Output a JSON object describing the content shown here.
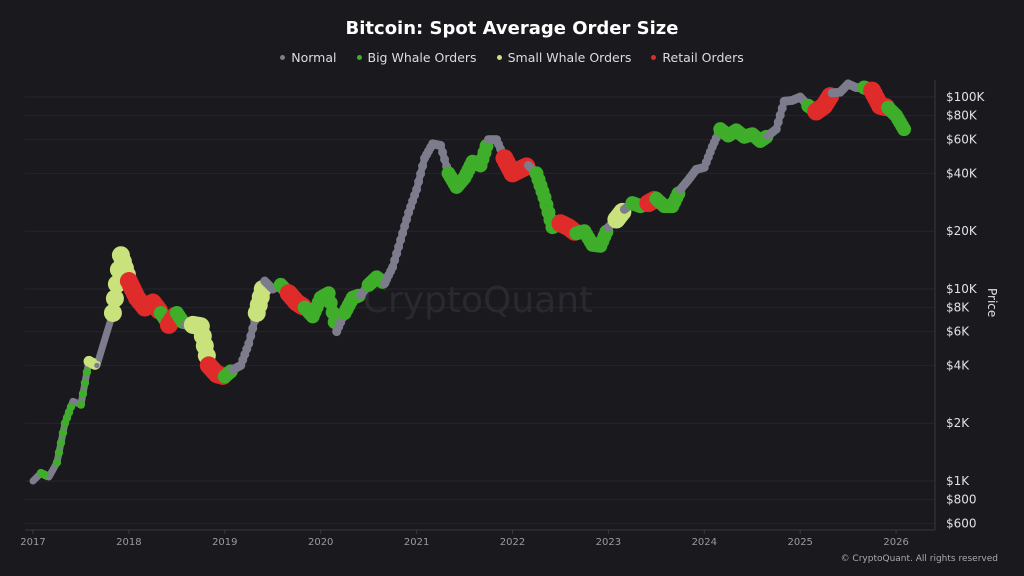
{
  "chart_data": {
    "type": "scatter",
    "title": "Bitcoin: Spot Average Order Size",
    "ylabel": "Price",
    "xlabel": "",
    "yscale": "log",
    "ylim": [
      600,
      120000
    ],
    "xlim": [
      "2016-12",
      "2026-05"
    ],
    "grid": true,
    "legend_placement": "top-center",
    "x_ticks": [
      "2017",
      "2018",
      "2019",
      "2020",
      "2021",
      "2022",
      "2023",
      "2024",
      "2025",
      "2026"
    ],
    "y_ticks": [
      {
        "value": 100000,
        "label": "$100K"
      },
      {
        "value": 80000,
        "label": "$80K"
      },
      {
        "value": 60000,
        "label": "$60K"
      },
      {
        "value": 40000,
        "label": "$40K"
      },
      {
        "value": 20000,
        "label": "$20K"
      },
      {
        "value": 10000,
        "label": "$10K"
      },
      {
        "value": 8000,
        "label": "$8K"
      },
      {
        "value": 6000,
        "label": "$6K"
      },
      {
        "value": 4000,
        "label": "$4K"
      },
      {
        "value": 2000,
        "label": "$2K"
      },
      {
        "value": 1000,
        "label": "$1K"
      },
      {
        "value": 800,
        "label": "$800"
      },
      {
        "value": 600,
        "label": "$600"
      }
    ],
    "categories": [
      {
        "key": "N",
        "name": "Normal",
        "color": "#7d7c8c"
      },
      {
        "key": "G",
        "name": "Big Whale Orders",
        "color": "#3fae2a"
      },
      {
        "key": "S",
        "name": "Small Whale Orders",
        "color": "#c9e27c"
      },
      {
        "key": "R",
        "name": "Retail Orders",
        "color": "#e02b2b"
      }
    ],
    "points": [
      [
        "2017-01",
        1000,
        "N"
      ],
      [
        "2017-02",
        1100,
        "G"
      ],
      [
        "2017-03",
        1050,
        "N"
      ],
      [
        "2017-04",
        1250,
        "G"
      ],
      [
        "2017-05",
        2000,
        "G"
      ],
      [
        "2017-06",
        2600,
        "N"
      ],
      [
        "2017-07",
        2500,
        "G"
      ],
      [
        "2017-08",
        4200,
        "S"
      ],
      [
        "2017-09",
        4000,
        "N"
      ],
      [
        "2017-10",
        5500,
        "N"
      ],
      [
        "2017-11",
        7500,
        "S"
      ],
      [
        "2017-12",
        15000,
        "S"
      ],
      [
        "2018-01",
        11000,
        "R"
      ],
      [
        "2018-02",
        9000,
        "R"
      ],
      [
        "2018-03",
        8000,
        "R"
      ],
      [
        "2018-04",
        8500,
        "R"
      ],
      [
        "2018-05",
        7500,
        "G"
      ],
      [
        "2018-06",
        6500,
        "R"
      ],
      [
        "2018-07",
        7500,
        "G"
      ],
      [
        "2018-08",
        6500,
        "N"
      ],
      [
        "2018-09",
        6500,
        "S"
      ],
      [
        "2018-10",
        6400,
        "S"
      ],
      [
        "2018-11",
        4000,
        "R"
      ],
      [
        "2018-12",
        3600,
        "R"
      ],
      [
        "2019-01",
        3500,
        "G"
      ],
      [
        "2019-02",
        3800,
        "N"
      ],
      [
        "2019-03",
        4000,
        "N"
      ],
      [
        "2019-04",
        5200,
        "N"
      ],
      [
        "2019-05",
        7500,
        "S"
      ],
      [
        "2019-06",
        11000,
        "N"
      ],
      [
        "2019-07",
        10000,
        "N"
      ],
      [
        "2019-08",
        10500,
        "G"
      ],
      [
        "2019-09",
        9500,
        "R"
      ],
      [
        "2019-10",
        8500,
        "R"
      ],
      [
        "2019-11",
        8000,
        "G"
      ],
      [
        "2019-12",
        7200,
        "G"
      ],
      [
        "2020-01",
        9000,
        "G"
      ],
      [
        "2020-02",
        9500,
        "G"
      ],
      [
        "2020-03",
        6000,
        "N"
      ],
      [
        "2020-04",
        7500,
        "G"
      ],
      [
        "2020-05",
        9000,
        "G"
      ],
      [
        "2020-06",
        9300,
        "N"
      ],
      [
        "2020-07",
        10500,
        "G"
      ],
      [
        "2020-08",
        11500,
        "G"
      ],
      [
        "2020-09",
        10700,
        "N"
      ],
      [
        "2020-10",
        13000,
        "N"
      ],
      [
        "2020-11",
        18000,
        "N"
      ],
      [
        "2020-12",
        25000,
        "N"
      ],
      [
        "2021-01",
        33000,
        "N"
      ],
      [
        "2021-02",
        48000,
        "N"
      ],
      [
        "2021-03",
        57000,
        "N"
      ],
      [
        "2021-04",
        56000,
        "N"
      ],
      [
        "2021-05",
        40000,
        "G"
      ],
      [
        "2021-06",
        34000,
        "G"
      ],
      [
        "2021-07",
        38000,
        "G"
      ],
      [
        "2021-08",
        46000,
        "G"
      ],
      [
        "2021-09",
        44000,
        "G"
      ],
      [
        "2021-10",
        60000,
        "N"
      ],
      [
        "2021-11",
        60000,
        "N"
      ],
      [
        "2021-12",
        48000,
        "R"
      ],
      [
        "2022-01",
        40000,
        "R"
      ],
      [
        "2022-02",
        42000,
        "R"
      ],
      [
        "2022-03",
        44000,
        "N"
      ],
      [
        "2022-04",
        40000,
        "G"
      ],
      [
        "2022-05",
        30000,
        "G"
      ],
      [
        "2022-06",
        21000,
        "G"
      ],
      [
        "2022-07",
        22000,
        "R"
      ],
      [
        "2022-08",
        21000,
        "R"
      ],
      [
        "2022-09",
        19500,
        "G"
      ],
      [
        "2022-10",
        20000,
        "G"
      ],
      [
        "2022-11",
        17000,
        "G"
      ],
      [
        "2022-12",
        16800,
        "G"
      ],
      [
        "2023-01",
        21000,
        "N"
      ],
      [
        "2023-02",
        23000,
        "S"
      ],
      [
        "2023-03",
        26000,
        "N"
      ],
      [
        "2023-04",
        28000,
        "G"
      ],
      [
        "2023-05",
        27000,
        "G"
      ],
      [
        "2023-06",
        28000,
        "R"
      ],
      [
        "2023-07",
        29500,
        "G"
      ],
      [
        "2023-08",
        27000,
        "G"
      ],
      [
        "2023-09",
        27000,
        "G"
      ],
      [
        "2023-10",
        33000,
        "N"
      ],
      [
        "2023-11",
        37000,
        "N"
      ],
      [
        "2023-12",
        42000,
        "N"
      ],
      [
        "2024-01",
        43000,
        "N"
      ],
      [
        "2024-02",
        55000,
        "N"
      ],
      [
        "2024-03",
        68000,
        "G"
      ],
      [
        "2024-04",
        63000,
        "G"
      ],
      [
        "2024-05",
        67000,
        "G"
      ],
      [
        "2024-06",
        62000,
        "G"
      ],
      [
        "2024-07",
        64000,
        "G"
      ],
      [
        "2024-08",
        59000,
        "G"
      ],
      [
        "2024-09",
        63000,
        "N"
      ],
      [
        "2024-10",
        68000,
        "N"
      ],
      [
        "2024-11",
        95000,
        "N"
      ],
      [
        "2024-12",
        96000,
        "N"
      ],
      [
        "2025-01",
        100000,
        "N"
      ],
      [
        "2025-02",
        90000,
        "G"
      ],
      [
        "2025-03",
        84000,
        "R"
      ],
      [
        "2025-04",
        90000,
        "R"
      ],
      [
        "2025-05",
        105000,
        "N"
      ],
      [
        "2025-06",
        106000,
        "N"
      ],
      [
        "2025-07",
        117000,
        "N"
      ],
      [
        "2025-08",
        112000,
        "N"
      ],
      [
        "2025-09",
        112000,
        "G"
      ],
      [
        "2025-10",
        108000,
        "R"
      ],
      [
        "2025-11",
        90000,
        "R"
      ],
      [
        "2025-12",
        88000,
        "G"
      ],
      [
        "2026-01",
        80000,
        "G"
      ],
      [
        "2026-02",
        68000,
        "G"
      ]
    ],
    "watermark": "CryptoQuant",
    "copyright": "© CryptoQuant. All rights reserved"
  }
}
